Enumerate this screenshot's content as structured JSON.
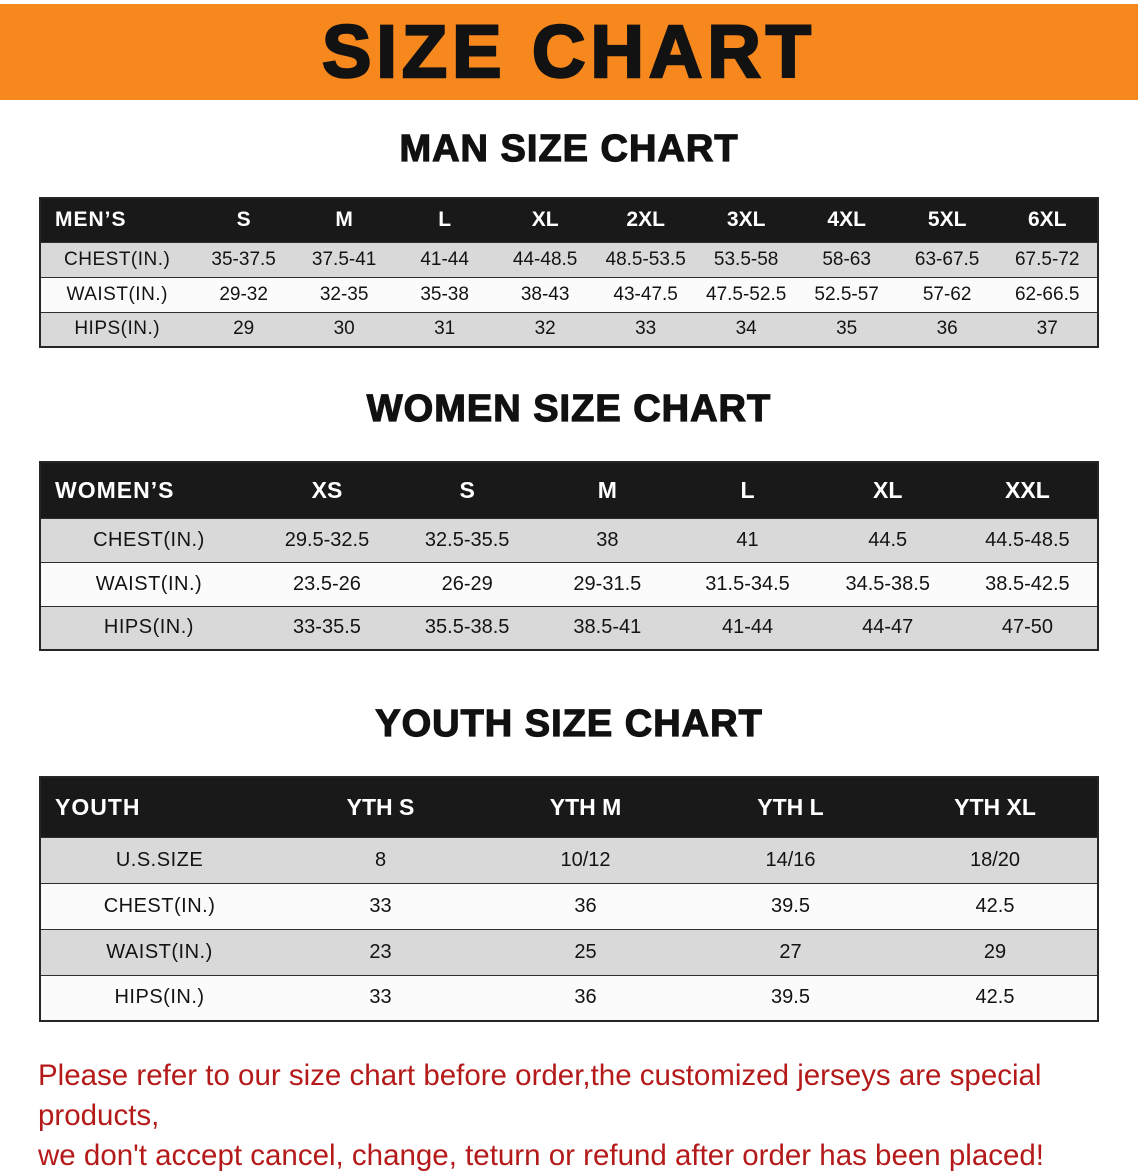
{
  "banner": {
    "title": "SIZE CHART",
    "bg_color": "#f6881d",
    "text_color": "#121212"
  },
  "colors": {
    "table_header_bg": "#191919",
    "table_header_text": "#ffffff",
    "row_shaded": "#d9d9d9",
    "row_plain": "#fbfbfb",
    "disclaimer_text": "#b51a1a"
  },
  "sections": [
    {
      "heading": "MAN SIZE CHART",
      "table": {
        "header": [
          "MEN’S",
          "S",
          "M",
          "L",
          "XL",
          "2XL",
          "3XL",
          "4XL",
          "5XL",
          "6XL"
        ],
        "rows": [
          [
            "CHEST(IN.)",
            "35-37.5",
            "37.5-41",
            "41-44",
            "44-48.5",
            "48.5-53.5",
            "53.5-58",
            "58-63",
            "63-67.5",
            "67.5-72"
          ],
          [
            "WAIST(IN.)",
            "29-32",
            "32-35",
            "35-38",
            "38-43",
            "43-47.5",
            "47.5-52.5",
            "52.5-57",
            "57-62",
            "62-66.5"
          ],
          [
            "HIPS(IN.)",
            "29",
            "30",
            "31",
            "32",
            "33",
            "34",
            "35",
            "36",
            "37"
          ]
        ]
      }
    },
    {
      "heading": "WOMEN SIZE CHART",
      "table": {
        "header": [
          "WOMEN’S",
          "XS",
          "S",
          "M",
          "L",
          "XL",
          "XXL"
        ],
        "rows": [
          [
            "CHEST(IN.)",
            "29.5-32.5",
            "32.5-35.5",
            "38",
            "41",
            "44.5",
            "44.5-48.5"
          ],
          [
            "WAIST(IN.)",
            "23.5-26",
            "26-29",
            "29-31.5",
            "31.5-34.5",
            "34.5-38.5",
            "38.5-42.5"
          ],
          [
            "HIPS(IN.)",
            "33-35.5",
            "35.5-38.5",
            "38.5-41",
            "41-44",
            "44-47",
            "47-50"
          ]
        ]
      }
    },
    {
      "heading": "YOUTH SIZE CHART",
      "table": {
        "header": [
          "YOUTH",
          "YTH S",
          "YTH M",
          "YTH L",
          "YTH XL"
        ],
        "rows": [
          [
            "U.S.SIZE",
            "8",
            "10/12",
            "14/16",
            "18/20"
          ],
          [
            "CHEST(IN.)",
            "33",
            "36",
            "39.5",
            "42.5"
          ],
          [
            "WAIST(IN.)",
            "23",
            "25",
            "27",
            "29"
          ],
          [
            "HIPS(IN.)",
            "33",
            "36",
            "39.5",
            "42.5"
          ]
        ]
      }
    }
  ],
  "footer": {
    "line1": "Please refer to our size chart before order,the customized jerseys are special products,",
    "line2": "we don't accept cancel, change, teturn or refund after order has been placed!"
  }
}
